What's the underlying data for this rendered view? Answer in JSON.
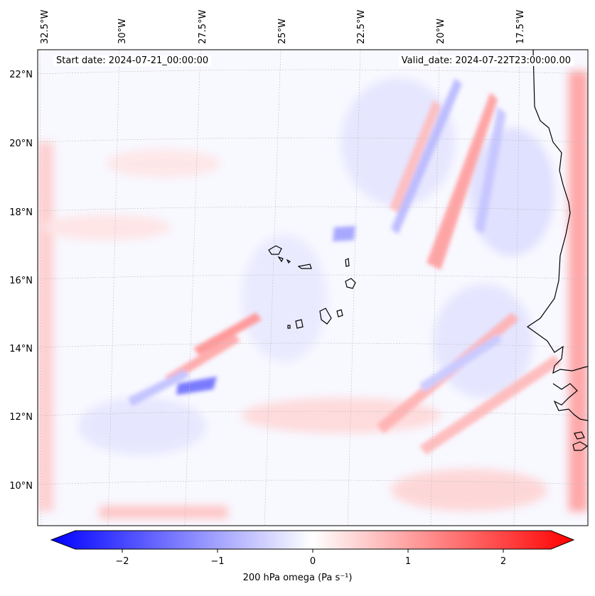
{
  "header": {
    "start_date": "Start date: 2024-07-21_00:00:00",
    "valid_date": "Valid_date: 2024-07-22T23:00:00.00"
  },
  "axes": {
    "lon_labels": [
      "32.5°W",
      "30°W",
      "27.5°W",
      "25°W",
      "22.5°W",
      "20°W",
      "17.5°W"
    ],
    "lat_labels": [
      "22°N",
      "20°N",
      "18°N",
      "16°N",
      "14°N",
      "12°N",
      "10°N"
    ]
  },
  "colorbar": {
    "title": "200 hPa omega (Pa s⁻¹)",
    "ticks": [
      "−2",
      "−1",
      "0",
      "1",
      "2"
    ],
    "range": [
      -2.6,
      2.6
    ],
    "colormap": "bwr",
    "colors": {
      "negative": "#0000ff",
      "zero": "#ffffff",
      "positive": "#ff0000"
    }
  },
  "map": {
    "field": "200 hPa omega",
    "coastline_color": "#000000",
    "grid": true
  }
}
